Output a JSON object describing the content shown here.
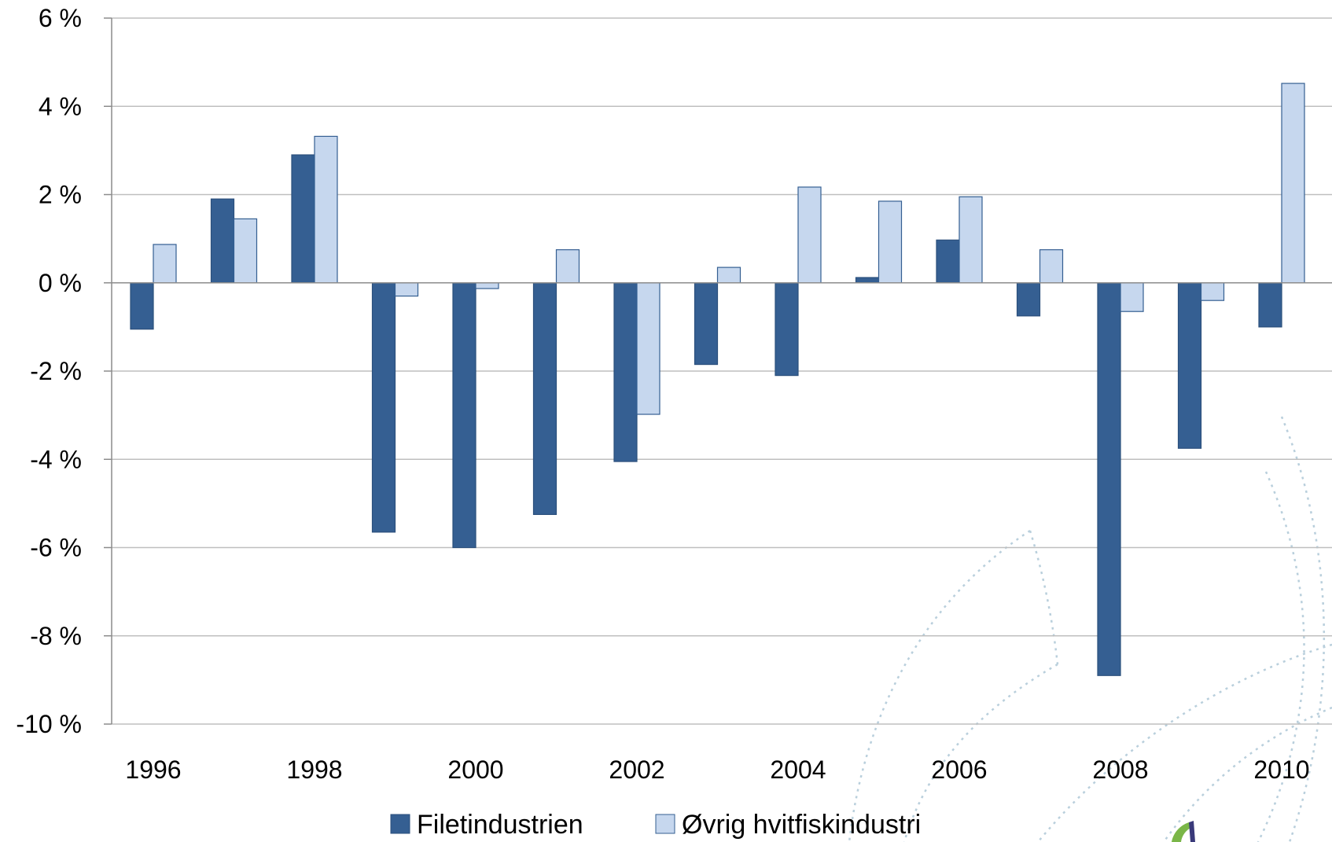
{
  "chart_data": {
    "type": "bar",
    "title": "",
    "xlabel": "",
    "ylabel": "",
    "categories": [
      "1996",
      "1997",
      "1998",
      "1999",
      "2000",
      "2001",
      "2002",
      "2003",
      "2004",
      "2005",
      "2006",
      "2007",
      "2008",
      "2009",
      "2010"
    ],
    "x_tick_labels": [
      "1996",
      "1998",
      "2000",
      "2002",
      "2004",
      "2006",
      "2008",
      "2010"
    ],
    "y_tick_labels": [
      "6 %",
      "4 %",
      "2 %",
      "0 %",
      "-2 %",
      "-4 %",
      "-6 %",
      "-8 %",
      "-10 %"
    ],
    "y_ticks": [
      6,
      4,
      2,
      0,
      -2,
      -4,
      -6,
      -8,
      -10
    ],
    "ylim": [
      -10,
      6
    ],
    "grid": true,
    "legend_position": "bottom",
    "series": [
      {
        "name": "Filetindustrien",
        "color": "#355f92",
        "values": [
          -1.05,
          1.9,
          2.9,
          -5.65,
          -6.0,
          -5.25,
          -4.05,
          -1.85,
          -2.1,
          0.12,
          0.97,
          -0.75,
          -8.9,
          -3.75,
          -1.0
        ]
      },
      {
        "name": "Øvrig hvitfiskindustri",
        "color": "#c6d7ee",
        "values": [
          0.87,
          1.45,
          3.32,
          -0.3,
          -0.13,
          0.75,
          -2.98,
          0.35,
          2.17,
          1.85,
          1.95,
          0.75,
          -0.65,
          -0.4,
          4.52
        ]
      }
    ]
  }
}
